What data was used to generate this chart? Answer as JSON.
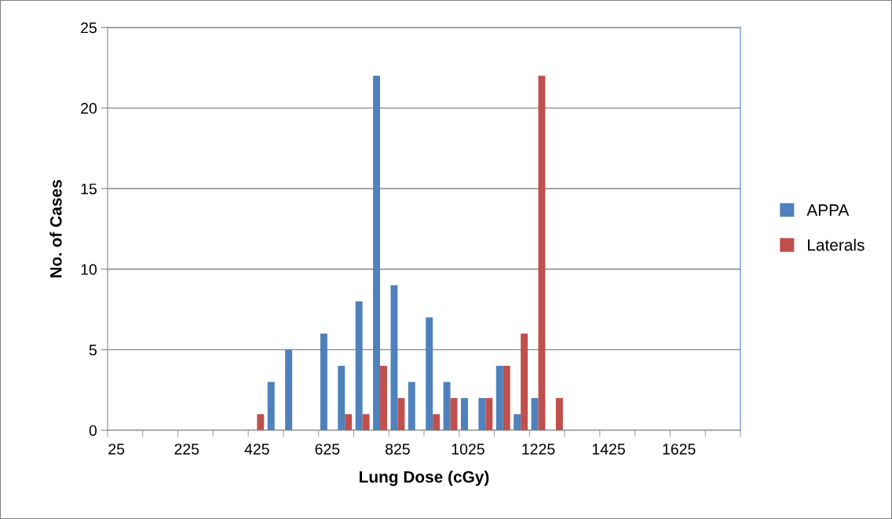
{
  "chart_data": {
    "type": "bar",
    "xlabel": "Lung Dose (cGy)",
    "ylabel": "No. of Cases",
    "categories": [
      "25",
      null,
      null,
      null,
      "225",
      null,
      null,
      null,
      "425",
      null,
      null,
      null,
      "625",
      null,
      null,
      null,
      "825",
      null,
      null,
      null,
      "1025",
      null,
      null,
      null,
      "1225",
      null,
      null,
      null,
      "1425",
      null,
      null,
      null,
      "1625",
      null,
      null,
      null
    ],
    "series": [
      {
        "name": "APPA",
        "color": "#4f81bd",
        "values": [
          0,
          0,
          0,
          0,
          0,
          0,
          0,
          0,
          0,
          3,
          5,
          0,
          6,
          4,
          8,
          22,
          9,
          3,
          7,
          3,
          2,
          2,
          4,
          1,
          2,
          0,
          0,
          0,
          0,
          0,
          0,
          0,
          0,
          0,
          0,
          0
        ]
      },
      {
        "name": "Laterals",
        "color": "#c0504d",
        "values": [
          0,
          0,
          0,
          0,
          0,
          0,
          0,
          0,
          1,
          0,
          0,
          0,
          0,
          1,
          1,
          4,
          2,
          0,
          1,
          2,
          0,
          2,
          4,
          6,
          22,
          2,
          0,
          0,
          0,
          0,
          0,
          0,
          0,
          0,
          0,
          0
        ]
      }
    ],
    "ylim": [
      0,
      25
    ],
    "yticks": [
      0,
      5,
      10,
      15,
      20,
      25
    ],
    "grid": "y",
    "legend": "right"
  }
}
